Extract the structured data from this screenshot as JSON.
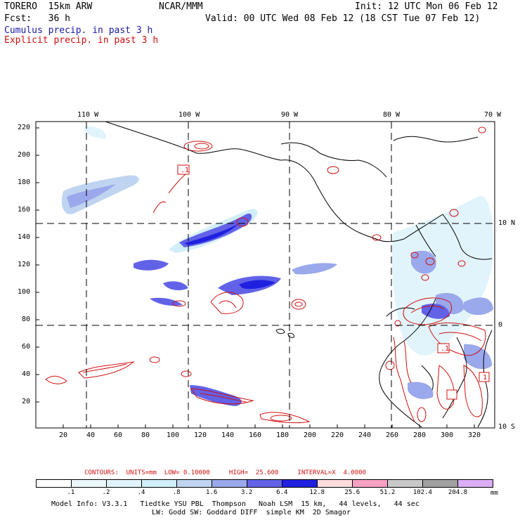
{
  "header": {
    "model": "TORERO  15km ARW",
    "org": "NCAR/MMM",
    "init": "Init: 12 UTC Mon 06 Feb 12",
    "fcst": "Fcst:   36 h",
    "valid": "Valid: 00 UTC Wed 08 Feb 12 (18 CST Tue 07 Feb 12)",
    "line1": "Cumulus precip. in past 3 h",
    "line2": "Explicit precip. in past 3 h"
  },
  "colors": {
    "cumulus": "#1a1aa8",
    "explicit": "#d01010"
  },
  "map": {
    "lon_labels": [
      "110 W",
      "100 W",
      "90 W",
      "80 W",
      "70 W"
    ],
    "lat_labels": [
      "10 N",
      "0",
      "10 S"
    ],
    "y_ticks": [
      "220",
      "200",
      "180",
      "160",
      "140",
      "120",
      "100",
      "80",
      "60",
      "40",
      "20"
    ],
    "x_ticks": [
      "20",
      "40",
      "60",
      "80",
      "100",
      "120",
      "140",
      "160",
      "180",
      "200",
      "220",
      "240",
      "260",
      "280",
      "300",
      "320"
    ],
    "contour_labels": [
      ".1",
      ".1",
      "1"
    ]
  },
  "contours_info": "CONTOURS:  UNITS=mm  LOW= 0.10000     HIGH=  25.600     INTERVAL=X  4.0000",
  "scale": {
    "labels": [
      ".1",
      ".2",
      ".4",
      ".8",
      "1.6",
      "3.2",
      "6.4",
      "12.8",
      "25.6",
      "51.2",
      "102.4",
      "204.8"
    ],
    "unit": "mm",
    "colors": [
      "#ffffff",
      "#ecf7fc",
      "#e1f4fb",
      "#d2eef9",
      "#bfd4f0",
      "#9aa8ec",
      "#6262e8",
      "#2020e0",
      "#fcdcdc",
      "#f8a0c4",
      "#c8c8c8",
      "#a0a0a0",
      "#dcaef8"
    ]
  },
  "footer": {
    "line1": "Model Info: V3.3.1   Tiedtke YSU PBL  Thompson   Noah LSM  15 km,   44 levels,   44 sec",
    "line2": "LW: Godd SW: Goddard DIFF  simple KM  2D Smagor"
  }
}
